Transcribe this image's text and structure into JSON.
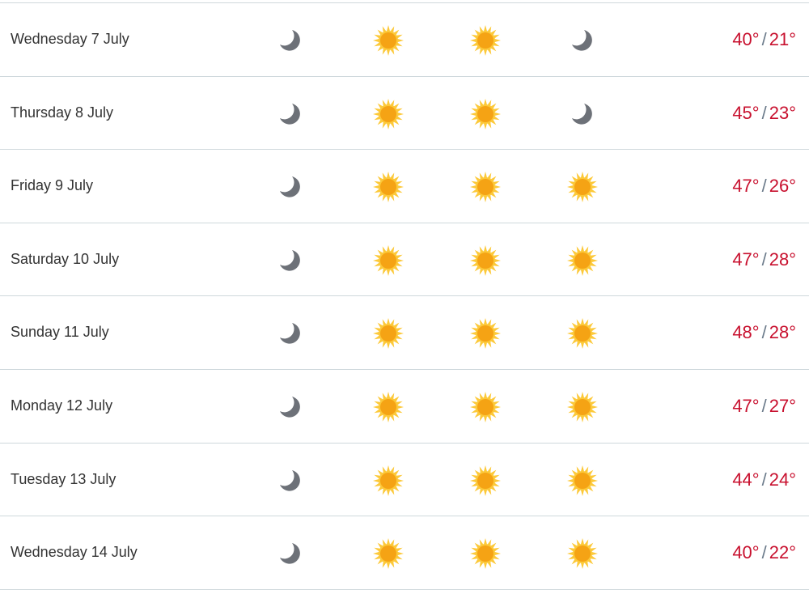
{
  "colors": {
    "temperature": "#c8102e",
    "moon": "#6d7178",
    "sun_core": "#f5a314",
    "sun_rays": "#fcc93a",
    "divider": "#cfd8dc"
  },
  "degree_separator": "/",
  "days": [
    {
      "label": "Wednesday 7 July",
      "icons": [
        "moon-icon",
        "sun-icon",
        "sun-icon",
        "moon-icon"
      ],
      "high": "40°",
      "low": "21°"
    },
    {
      "label": "Thursday 8 July",
      "icons": [
        "moon-icon",
        "sun-icon",
        "sun-icon",
        "moon-icon"
      ],
      "high": "45°",
      "low": "23°"
    },
    {
      "label": "Friday 9 July",
      "icons": [
        "moon-icon",
        "sun-icon",
        "sun-icon",
        "sun-icon"
      ],
      "high": "47°",
      "low": "26°"
    },
    {
      "label": "Saturday 10 July",
      "icons": [
        "moon-icon",
        "sun-icon",
        "sun-icon",
        "sun-icon"
      ],
      "high": "47°",
      "low": "28°"
    },
    {
      "label": "Sunday 11 July",
      "icons": [
        "moon-icon",
        "sun-icon",
        "sun-icon",
        "sun-icon"
      ],
      "high": "48°",
      "low": "28°"
    },
    {
      "label": "Monday 12 July",
      "icons": [
        "moon-icon",
        "sun-icon",
        "sun-icon",
        "sun-icon"
      ],
      "high": "47°",
      "low": "27°"
    },
    {
      "label": "Tuesday 13 July",
      "icons": [
        "moon-icon",
        "sun-icon",
        "sun-icon",
        "sun-icon"
      ],
      "high": "44°",
      "low": "24°"
    },
    {
      "label": "Wednesday 14 July",
      "icons": [
        "moon-icon",
        "sun-icon",
        "sun-icon",
        "sun-icon"
      ],
      "high": "40°",
      "low": "22°"
    }
  ]
}
